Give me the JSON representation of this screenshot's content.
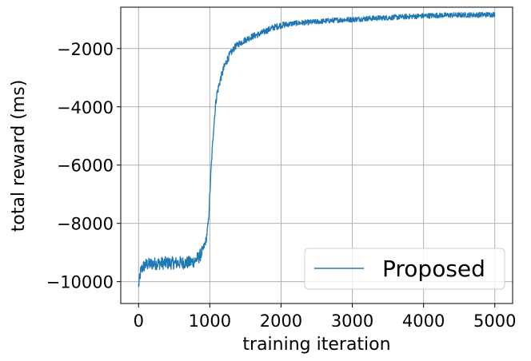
{
  "chart_data": {
    "type": "line",
    "title": "",
    "xlabel": "training iteration",
    "ylabel": "total reward (ms)",
    "xlim": [
      -250,
      5250
    ],
    "ylim": [
      -10750,
      -580
    ],
    "xticks": [
      0,
      1000,
      2000,
      3000,
      4000,
      5000
    ],
    "yticks": [
      -10000,
      -8000,
      -6000,
      -4000,
      -2000
    ],
    "xtick_labels": [
      "0",
      "1000",
      "2000",
      "3000",
      "4000",
      "5000"
    ],
    "ytick_labels": [
      "−10000",
      "−8000",
      "−6000",
      "−4000",
      "−2000"
    ],
    "grid": true,
    "legend_position": "lower-right",
    "series": [
      {
        "name": "Proposed",
        "color": "#1f77b4",
        "x": [
          0,
          30,
          60,
          100,
          200,
          300,
          400,
          500,
          600,
          700,
          780,
          850,
          900,
          950,
          980,
          1000,
          1020,
          1050,
          1080,
          1100,
          1150,
          1200,
          1250,
          1300,
          1350,
          1400,
          1500,
          1600,
          1700,
          1800,
          1900,
          2000,
          2200,
          2400,
          2600,
          2800,
          3000,
          3200,
          3500,
          3800,
          4000,
          4200,
          4500,
          4800,
          5000
        ],
        "y": [
          -10150,
          -9650,
          -9500,
          -9420,
          -9380,
          -9370,
          -9360,
          -9360,
          -9350,
          -9350,
          -9300,
          -9150,
          -8950,
          -8550,
          -7950,
          -7050,
          -6050,
          -4850,
          -3950,
          -3550,
          -3050,
          -2650,
          -2350,
          -2150,
          -1950,
          -1850,
          -1700,
          -1580,
          -1500,
          -1380,
          -1270,
          -1200,
          -1130,
          -1100,
          -1060,
          -1020,
          -1000,
          -970,
          -940,
          -900,
          -880,
          -860,
          -850,
          -840,
          -830
        ]
      }
    ]
  }
}
